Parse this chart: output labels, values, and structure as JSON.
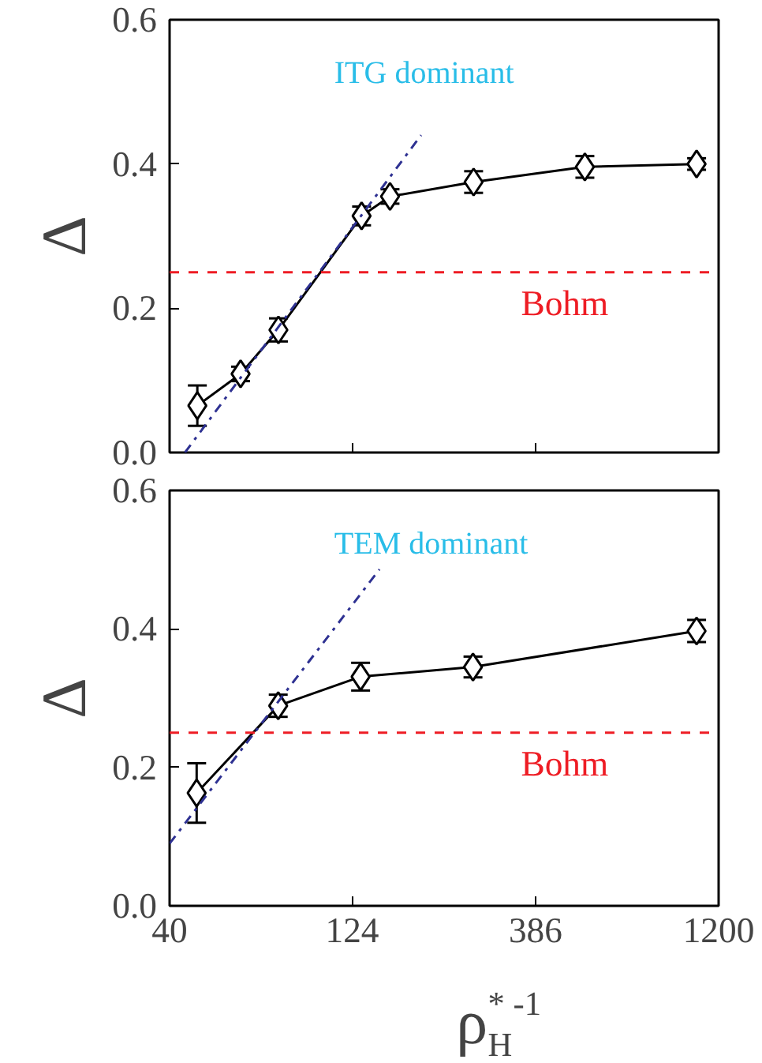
{
  "chart_data": [
    {
      "type": "line",
      "ylabel": "Δ",
      "log": "x",
      "xlim": [
        40,
        1200
      ],
      "xticks": [
        {
          "value": 40,
          "label": null
        },
        {
          "value": 124,
          "label": null
        },
        {
          "value": 386,
          "label": null
        },
        {
          "value": 1200,
          "label": null
        }
      ],
      "ylim": [
        0,
        0.6
      ],
      "tick_labels": "y",
      "marker": "diamond",
      "grid": false,
      "yticks": [
        {
          "value": 0,
          "label": "0.0"
        },
        {
          "value": 0.2,
          "label": "0.2"
        },
        {
          "value": 0.4,
          "label": "0.4"
        },
        {
          "value": 0.6,
          "label": "0.6"
        }
      ],
      "annotations": [
        "ITG dominant"
      ],
      "ref_lines": [
        {
          "axis": "y",
          "value": 0.25,
          "label": "Bohm",
          "color": "#ee1c24",
          "line_style": "dashed"
        }
      ],
      "series": [
        {
          "color": "#000000",
          "x": [
            47.5,
            62.1,
            78.5,
            131.4,
            156.7,
            263,
            524,
            1047
          ],
          "values": [
            0.065,
            0.109,
            0.17,
            0.328,
            0.355,
            0.375,
            0.396,
            0.4
          ],
          "errors": [
            0.028,
            0.01,
            0.016,
            0.013,
            0.01,
            0.015,
            0.015,
            0.008
          ]
        },
        {
          "type": "line",
          "color": "#2e3192",
          "line_style": "dashdot",
          "marker": "none",
          "x": [
            44,
            190
          ],
          "values": [
            0.0,
            0.44
          ]
        }
      ]
    },
    {
      "type": "line",
      "ylabel": "Δ",
      "xlabel": "ρ$_{H}$$^{* -1}$",
      "log": "x",
      "xlim": [
        40,
        1200
      ],
      "xticks": [
        40,
        124,
        386,
        1200
      ],
      "ylim": [
        0,
        0.6
      ],
      "yticks": [
        {
          "value": 0,
          "label": "0.0"
        },
        {
          "value": 0.2,
          "label": "0.2"
        },
        {
          "value": 0.4,
          "label": "0.4"
        },
        {
          "value": 0.6,
          "label": "0.6"
        }
      ],
      "marker": "diamond",
      "grid": false,
      "annotations": [
        "TEM dominant"
      ],
      "ref_lines": [
        {
          "axis": "y",
          "value": 0.25,
          "label": "Bohm",
          "color": "#ee1c24",
          "line_style": "dashed"
        }
      ],
      "series": [
        {
          "color": "#000000",
          "x": [
            47.3,
            78.4,
            130.6,
            262,
            1047
          ],
          "values": [
            0.163,
            0.289,
            0.331,
            0.345,
            0.397
          ],
          "errors": [
            0.043,
            0.016,
            0.02,
            0.015,
            0.016
          ]
        },
        {
          "type": "line",
          "color": "#2e3192",
          "line_style": "dashdot",
          "marker": "none",
          "x": [
            40,
            146.8
          ],
          "values": [
            0.09,
            0.486
          ]
        }
      ]
    }
  ]
}
